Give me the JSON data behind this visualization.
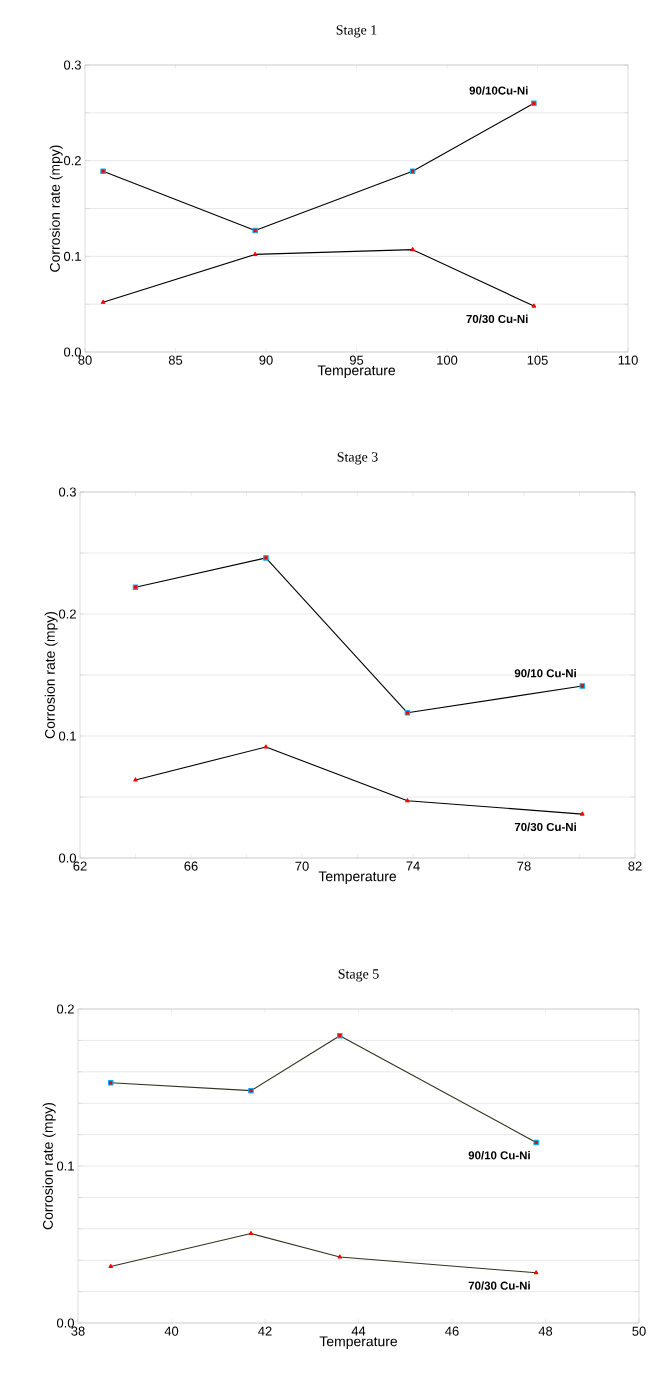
{
  "chart_data": [
    {
      "type": "line",
      "title": "Stage 1",
      "xlabel": "Temperature",
      "ylabel": "Corrosion rate (mpy)",
      "xlim": [
        80,
        110
      ],
      "ylim": [
        0,
        0.3
      ],
      "xticks": [
        80,
        85,
        90,
        95,
        100,
        105,
        110
      ],
      "yticks": [
        {
          "value": 0,
          "label": "0.0"
        },
        {
          "value": 0.05,
          "label": null
        },
        0.1,
        {
          "value": 0.15,
          "label": null
        },
        0.2,
        {
          "value": 0.25,
          "label": null
        },
        0.3
      ],
      "grid": "y",
      "series": [
        {
          "name": "90/10Cu-Ni",
          "color": "#000000",
          "marker": "square",
          "x": [
            81,
            89.4,
            98.1,
            104.8
          ],
          "values": [
            0.189,
            0.127,
            0.189,
            0.26
          ]
        },
        {
          "name": "70/30 Cu-Ni",
          "color": "#000000",
          "marker": "triangle",
          "x": [
            81,
            89.4,
            98.1,
            104.8
          ],
          "values": [
            0.052,
            0.102,
            0.107,
            0.048
          ]
        }
      ]
    },
    {
      "type": "line",
      "title": "Stage 3",
      "xlabel": "Temperature",
      "ylabel": "Corrosion rate (mpy)",
      "xlim": [
        62,
        82
      ],
      "ylim": [
        0,
        0.3
      ],
      "xticks": [
        62,
        {
          "value": 64,
          "label": null
        },
        66,
        {
          "value": 68,
          "label": null
        },
        70,
        {
          "value": 72,
          "label": null
        },
        74,
        {
          "value": 76,
          "label": null
        },
        78,
        {
          "value": 80,
          "label": null
        },
        82
      ],
      "yticks": [
        {
          "value": 0,
          "label": "0.0"
        },
        {
          "value": 0.05,
          "label": null
        },
        0.1,
        {
          "value": 0.15,
          "label": null
        },
        0.2,
        {
          "value": 0.25,
          "label": null
        },
        0.3
      ],
      "grid": "y",
      "series": [
        {
          "name": "90/10 Cu-Ni",
          "color": "#000000",
          "marker": "square",
          "x": [
            64.0,
            68.7,
            73.8,
            80.1
          ],
          "values": [
            0.222,
            0.246,
            0.119,
            0.141
          ]
        },
        {
          "name": "70/30 Cu-Ni",
          "color": "#000000",
          "marker": "triangle",
          "x": [
            64.0,
            68.7,
            73.8,
            80.1
          ],
          "values": [
            0.064,
            0.091,
            0.047,
            0.036
          ]
        }
      ]
    },
    {
      "type": "line",
      "title": "Stage 5",
      "xlabel": "Temperature",
      "ylabel": "Corrosion rate (mpy)",
      "xlim": [
        38,
        50
      ],
      "ylim": [
        0,
        0.2
      ],
      "xticks": [
        38,
        40,
        42,
        44,
        46,
        48,
        50
      ],
      "yticks": [
        {
          "value": 0,
          "label": "0.0"
        },
        {
          "value": 0.02,
          "label": null
        },
        {
          "value": 0.04,
          "label": null
        },
        {
          "value": 0.06,
          "label": null
        },
        {
          "value": 0.08,
          "label": null
        },
        0.1,
        {
          "value": 0.12,
          "label": null
        },
        {
          "value": 0.14,
          "label": null
        },
        {
          "value": 0.16,
          "label": null
        },
        {
          "value": 0.18,
          "label": null
        },
        0.2
      ],
      "grid": "y",
      "series": [
        {
          "name": "90/10 Cu-Ni",
          "color": "#333322",
          "marker": "square",
          "x": [
            38.7,
            41.7,
            43.6,
            47.8
          ],
          "values": [
            0.153,
            0.148,
            0.183,
            0.115
          ]
        },
        {
          "name": "70/30 Cu-Ni",
          "color": "#333322",
          "marker": "triangle",
          "x": [
            38.7,
            41.7,
            43.6,
            47.8
          ],
          "values": [
            0.036,
            0.057,
            0.042,
            0.032
          ]
        }
      ]
    }
  ]
}
